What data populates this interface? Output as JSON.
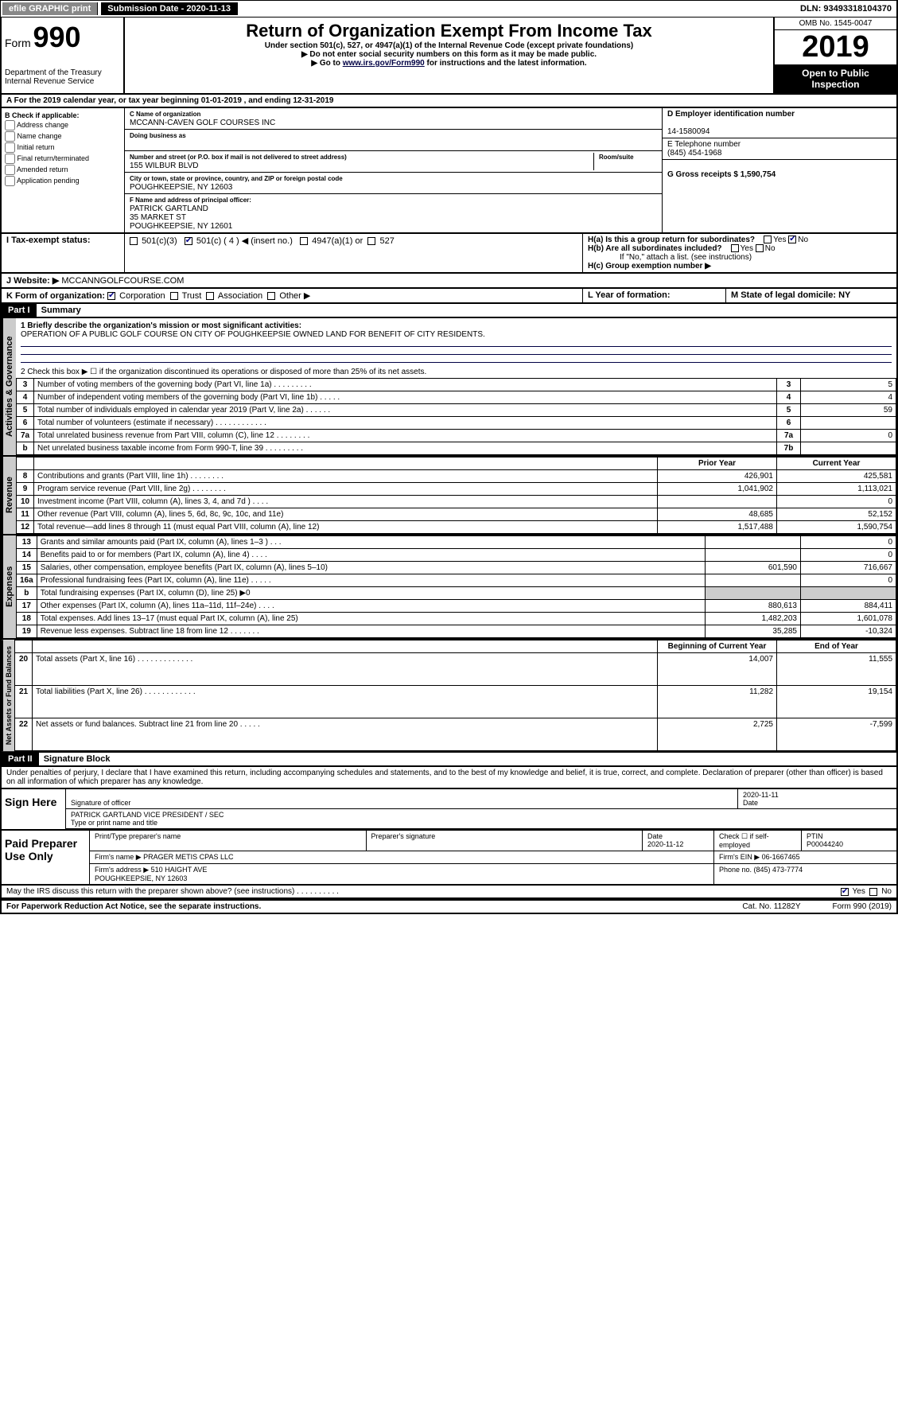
{
  "topbar": {
    "efile": "efile GRAPHIC print",
    "sub_label": "Submission Date - 2020-11-13",
    "dln": "DLN: 93493318104370"
  },
  "header": {
    "form_word": "Form",
    "form_no": "990",
    "dept": "Department of the Treasury\nInternal Revenue Service",
    "title": "Return of Organization Exempt From Income Tax",
    "sub1": "Under section 501(c), 527, or 4947(a)(1) of the Internal Revenue Code (except private foundations)",
    "sub2": "▶ Do not enter social security numbers on this form as it may be made public.",
    "sub3_pre": "▶ Go to ",
    "sub3_link": "www.irs.gov/Form990",
    "sub3_post": " for instructions and the latest information.",
    "omb": "OMB No. 1545-0047",
    "year": "2019",
    "public": "Open to Public Inspection"
  },
  "period": "For the 2019 calendar year, or tax year beginning 01-01-2019     , and ending 12-31-2019",
  "sectionB": {
    "label": "B Check if applicable:",
    "opts": [
      "Address change",
      "Name change",
      "Initial return",
      "Final return/terminated",
      "Amended return",
      "Application pending"
    ]
  },
  "sectionC": {
    "c_label": "C Name of organization",
    "c_val": "MCCANN-CAVEN GOLF COURSES INC",
    "dba_label": "Doing business as",
    "addr_label": "Number and street (or P.O. box if mail is not delivered to street address)",
    "room_label": "Room/suite",
    "addr_val": "155 WILBUR BLVD",
    "city_label": "City or town, state or province, country, and ZIP or foreign postal code",
    "city_val": "POUGHKEEPSIE, NY  12603",
    "f_label": "F  Name and address of principal officer:",
    "f_val": "PATRICK GARTLAND\n35 MARKET ST\nPOUGHKEEPSIE, NY  12601"
  },
  "sectionD": {
    "d_label": "D Employer identification number",
    "d_val": "14-1580094",
    "e_label": "E Telephone number",
    "e_val": "(845) 454-1968",
    "g_label": "G Gross receipts $ 1,590,754"
  },
  "sectionH": {
    "ha": "H(a)  Is this a group return for subordinates?",
    "hb": "H(b)  Are all subordinates included?",
    "hb_note": "If \"No,\" attach a list. (see instructions)",
    "hc": "H(c)  Group exemption number ▶",
    "yes": "Yes",
    "no": "No"
  },
  "taxstatus": {
    "I_label": "I   Tax-exempt status:",
    "opts": [
      "501(c)(3)",
      "501(c) ( 4 ) ◀ (insert no.)",
      "4947(a)(1) or",
      "527"
    ]
  },
  "J": {
    "label": "J   Website: ▶",
    "val": "MCCANNGOLFCOURSE.COM"
  },
  "K": {
    "label": "K Form of organization:",
    "opts": [
      "Corporation",
      "Trust",
      "Association",
      "Other ▶"
    ]
  },
  "L": {
    "label": "L Year of formation:",
    "val": ""
  },
  "M": {
    "label": "M State of legal domicile: NY"
  },
  "part1": {
    "hdr": "Part I",
    "title": "Summary"
  },
  "summary": {
    "l1_label": "1  Briefly describe the organization's mission or most significant activities:",
    "l1_val": "OPERATION OF A PUBLIC GOLF COURSE ON CITY OF POUGHKEEPSIE OWNED LAND FOR BENEFIT OF CITY RESIDENTS.",
    "l2": "2   Check this box ▶ ☐  if the organization discontinued its operations or disposed of more than 25% of its net assets.",
    "rows_gov": [
      {
        "n": "3",
        "t": "Number of voting members of the governing body (Part VI, line 1a)  .    .    .    .    .    .    .    .    .",
        "b": "3",
        "v": "5"
      },
      {
        "n": "4",
        "t": "Number of independent voting members of the governing body (Part VI, line 1b)   .    .    .    .    .",
        "b": "4",
        "v": "4"
      },
      {
        "n": "5",
        "t": "Total number of individuals employed in calendar year 2019 (Part V, line 2a)   .    .    .    .    .    .",
        "b": "5",
        "v": "59"
      },
      {
        "n": "6",
        "t": "Total number of volunteers (estimate if necessary)    .    .    .    .    .    .    .    .    .    .    .    .",
        "b": "6",
        "v": ""
      },
      {
        "n": "7a",
        "t": "Total unrelated business revenue from Part VIII, column (C), line 12    .    .    .    .    .    .    .    .",
        "b": "7a",
        "v": "0"
      },
      {
        "n": "b",
        "t": "Net unrelated business taxable income from Form 990-T, line 39   .    .    .    .    .    .    .    .    .",
        "b": "7b",
        "v": ""
      }
    ],
    "col_prior": "Prior Year",
    "col_current": "Current Year",
    "rows_rev": [
      {
        "n": "8",
        "t": "Contributions and grants (Part VIII, line 1h)   .    .    .    .    .    .    .    .",
        "p": "426,901",
        "c": "425,581"
      },
      {
        "n": "9",
        "t": "Program service revenue (Part VIII, line 2g)   .    .    .    .    .    .    .    .",
        "p": "1,041,902",
        "c": "1,113,021"
      },
      {
        "n": "10",
        "t": "Investment income (Part VIII, column (A), lines 3, 4, and 7d )  .    .    .    .",
        "p": "",
        "c": "0"
      },
      {
        "n": "11",
        "t": "Other revenue (Part VIII, column (A), lines 5, 6d, 8c, 9c, 10c, and 11e)",
        "p": "48,685",
        "c": "52,152"
      },
      {
        "n": "12",
        "t": "Total revenue—add lines 8 through 11 (must equal Part VIII, column (A), line 12)",
        "p": "1,517,488",
        "c": "1,590,754"
      }
    ],
    "rows_exp": [
      {
        "n": "13",
        "t": "Grants and similar amounts paid (Part IX, column (A), lines 1–3 )  .    .    .",
        "p": "",
        "c": "0"
      },
      {
        "n": "14",
        "t": "Benefits paid to or for members (Part IX, column (A), line 4)  .    .    .    .",
        "p": "",
        "c": "0"
      },
      {
        "n": "15",
        "t": "Salaries, other compensation, employee benefits (Part IX, column (A), lines 5–10)",
        "p": "601,590",
        "c": "716,667"
      },
      {
        "n": "16a",
        "t": "Professional fundraising fees (Part IX, column (A), line 11e)   .    .    .    .    .",
        "p": "",
        "c": "0"
      },
      {
        "n": "b",
        "t": "Total fundraising expenses (Part IX, column (D), line 25) ▶0",
        "p": "—shade—",
        "c": "—shade—"
      },
      {
        "n": "17",
        "t": "Other expenses (Part IX, column (A), lines 11a–11d, 11f–24e)  .    .    .    .",
        "p": "880,613",
        "c": "884,411"
      },
      {
        "n": "18",
        "t": "Total expenses. Add lines 13–17 (must equal Part IX, column (A), line 25)",
        "p": "1,482,203",
        "c": "1,601,078"
      },
      {
        "n": "19",
        "t": "Revenue less expenses. Subtract line 18 from line 12   .    .    .    .    .    .    .",
        "p": "35,285",
        "c": "-10,324"
      }
    ],
    "col_bcy": "Beginning of Current Year",
    "col_eoy": "End of Year",
    "rows_net": [
      {
        "n": "20",
        "t": "Total assets (Part X, line 16)  .    .    .    .    .    .    .    .    .    .    .    .    .",
        "p": "14,007",
        "c": "11,555"
      },
      {
        "n": "21",
        "t": "Total liabilities (Part X, line 26)   .    .    .    .    .    .    .    .    .    .    .    .",
        "p": "11,282",
        "c": "19,154"
      },
      {
        "n": "22",
        "t": "Net assets or fund balances. Subtract line 21 from line 20  .    .    .    .    .",
        "p": "2,725",
        "c": "-7,599"
      }
    ],
    "side_gov": "Activities & Governance",
    "side_rev": "Revenue",
    "side_exp": "Expenses",
    "side_net": "Net Assets or Fund Balances"
  },
  "part2": {
    "hdr": "Part II",
    "title": "Signature Block",
    "decl": "Under penalties of perjury, I declare that I have examined this return, including accompanying schedules and statements, and to the best of my knowledge and belief, it is true, correct, and complete. Declaration of preparer (other than officer) is based on all information of which preparer has any knowledge."
  },
  "sign": {
    "here": "Sign Here",
    "sig_officer": "Signature of officer",
    "date": "2020-11-11",
    "date_lab": "Date",
    "name": "PATRICK GARTLAND  VICE PRESIDENT / SEC",
    "name_lab": "Type or print name and title"
  },
  "paid": {
    "label": "Paid Preparer Use Only",
    "r1": {
      "a": "Print/Type preparer's name",
      "b": "Preparer's signature",
      "c": "Date\n2020-11-12",
      "d": "Check ☐ if self-employed",
      "e": "PTIN\nP00044240"
    },
    "r2": {
      "a": "Firm's name      ▶ PRAGER METIS CPAS LLC",
      "b": "Firm's EIN ▶ 06-1667465"
    },
    "r3": {
      "a": "Firm's address ▶ 510 HAIGHT AVE\n                             POUGHKEEPSIE, NY  12603",
      "b": "Phone no. (845) 473-7774"
    }
  },
  "footer": {
    "q": "May the IRS discuss this return with the preparer shown above? (see instructions)   .    .    .    .    .    .    .    .    .    .",
    "yes": "Yes",
    "no": "No",
    "pra": "For Paperwork Reduction Act Notice, see the separate instructions.",
    "cat": "Cat. No. 11282Y",
    "form": "Form 990 (2019)"
  }
}
